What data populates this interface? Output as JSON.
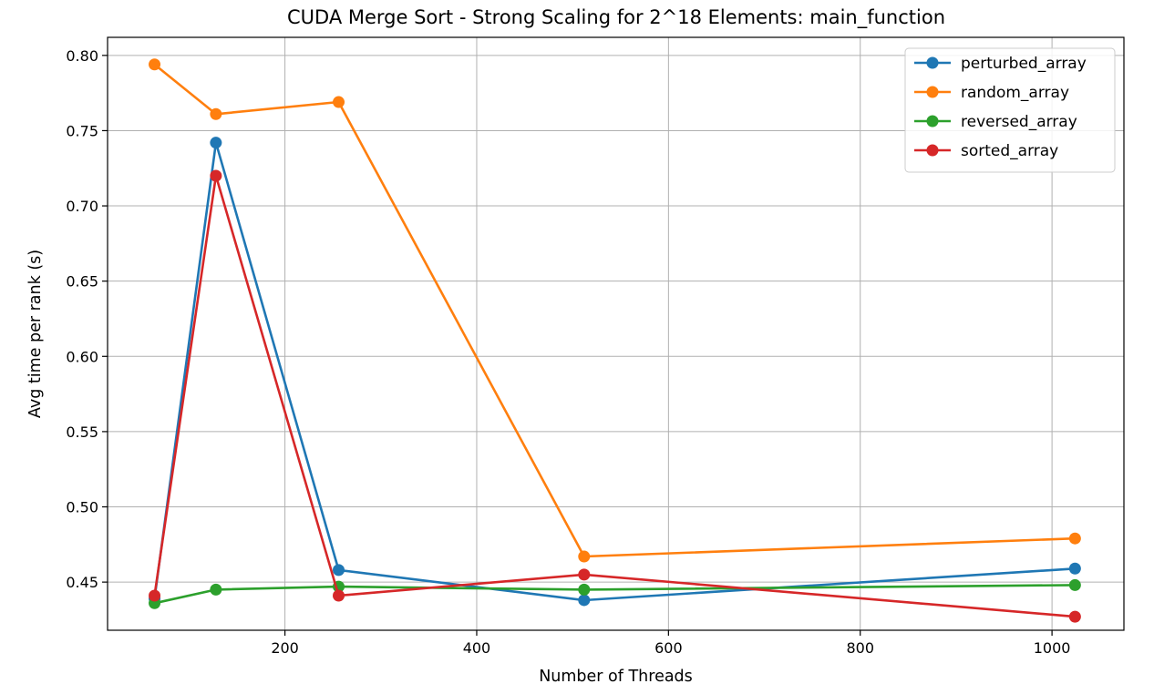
{
  "chart_data": {
    "type": "line",
    "title": "CUDA Merge Sort - Strong Scaling for 2^18 Elements: main_function",
    "xlabel": "Number of Threads",
    "ylabel": "Avg time per rank (s)",
    "xlim": [
      15,
      1075
    ],
    "ylim": [
      0.418,
      0.812
    ],
    "xticks": [
      200,
      400,
      600,
      800,
      1000
    ],
    "xtick_labels": [
      "200",
      "400",
      "600",
      "800",
      "1000"
    ],
    "yticks": [
      0.45,
      0.5,
      0.55,
      0.6,
      0.65,
      0.7,
      0.75,
      0.8
    ],
    "ytick_labels": [
      "0.45",
      "0.50",
      "0.55",
      "0.60",
      "0.65",
      "0.70",
      "0.75",
      "0.80"
    ],
    "grid": true,
    "legend_position": "top-right",
    "x": [
      64,
      128,
      256,
      512,
      1024
    ],
    "series": [
      {
        "name": "perturbed_array",
        "color": "#1f77b4",
        "values": [
          0.439,
          0.742,
          0.458,
          0.438,
          0.459
        ]
      },
      {
        "name": "random_array",
        "color": "#ff7f0e",
        "values": [
          0.794,
          0.761,
          0.769,
          0.467,
          0.479
        ]
      },
      {
        "name": "reversed_array",
        "color": "#2ca02c",
        "values": [
          0.436,
          0.445,
          0.447,
          0.445,
          0.448
        ]
      },
      {
        "name": "sorted_array",
        "color": "#d62728",
        "values": [
          0.441,
          0.72,
          0.441,
          0.455,
          0.427
        ]
      }
    ]
  }
}
